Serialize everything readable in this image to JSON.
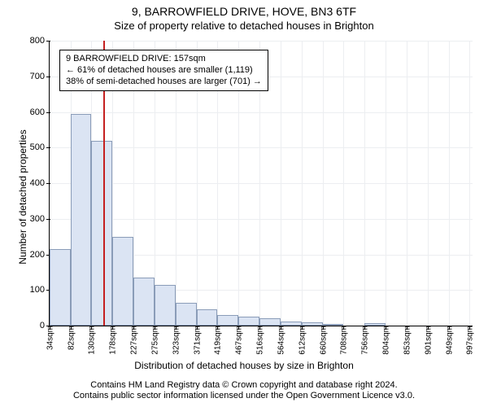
{
  "title_main": "9, BARROWFIELD DRIVE, HOVE, BN3 6TF",
  "title_sub": "Size of property relative to detached houses in Brighton",
  "ylabel": "Number of detached properties",
  "xlabel": "Distribution of detached houses by size in Brighton",
  "attribution_line1": "Contains HM Land Registry data © Crown copyright and database right 2024.",
  "attribution_line2": "Contains public sector information licensed under the Open Government Licence v3.0.",
  "annotation": {
    "line1": "9 BARROWFIELD DRIVE: 157sqm",
    "line2": "← 61% of detached houses are smaller (1,119)",
    "line3": "38% of semi-detached houses are larger (701) →"
  },
  "chart": {
    "type": "histogram",
    "background_color": "#ffffff",
    "grid_color": "#eceef1",
    "bar_fill": "#dbe4f3",
    "bar_border": "#8a9cb8",
    "marker_color": "#c52020",
    "ylim": [
      0,
      800
    ],
    "ytick_step": 100,
    "x_min_sqm": 34,
    "x_max_sqm": 1004,
    "x_tick_labels": [
      "34sqm",
      "82sqm",
      "130sqm",
      "178sqm",
      "227sqm",
      "275sqm",
      "323sqm",
      "371sqm",
      "419sqm",
      "467sqm",
      "516sqm",
      "564sqm",
      "612sqm",
      "660sqm",
      "708sqm",
      "756sqm",
      "804sqm",
      "853sqm",
      "901sqm",
      "949sqm",
      "997sqm"
    ],
    "bin_edges_sqm": [
      34,
      82,
      130,
      178,
      227,
      275,
      323,
      371,
      419,
      467,
      516,
      564,
      612,
      660,
      708,
      756,
      804,
      853,
      901,
      949,
      997
    ],
    "bar_values": [
      215,
      595,
      520,
      250,
      135,
      115,
      65,
      45,
      30,
      25,
      20,
      12,
      10,
      4,
      0,
      8,
      0,
      0,
      0,
      0
    ],
    "marker_at_sqm": 157,
    "label_fontsize": 12,
    "tick_fontsize": 11
  }
}
